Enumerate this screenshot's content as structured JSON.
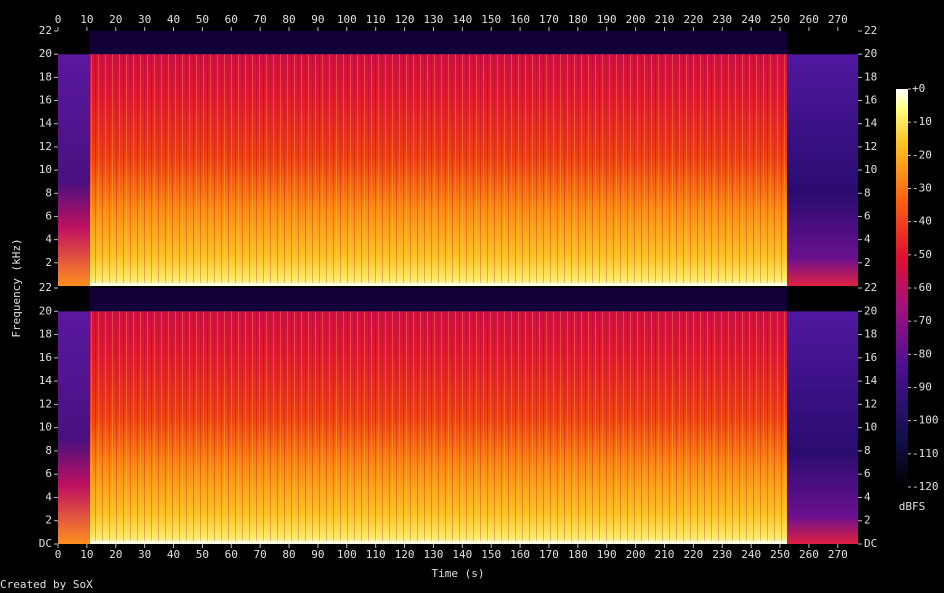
{
  "chart_data": {
    "type": "spectrogram",
    "x_label": "Time (s)",
    "y_label": "Frequency (kHz)",
    "credit": "Created by SoX",
    "xlim": [
      0,
      277
    ],
    "xticks": [
      0,
      10,
      20,
      30,
      40,
      50,
      60,
      70,
      80,
      90,
      100,
      110,
      120,
      130,
      140,
      150,
      160,
      170,
      180,
      190,
      200,
      210,
      220,
      230,
      240,
      250,
      260,
      270
    ],
    "channels": [
      {
        "ylim": [
          0,
          22
        ],
        "yticks": [
          2,
          4,
          6,
          8,
          10,
          12,
          14,
          16,
          18,
          20,
          22
        ]
      },
      {
        "ylim": [
          0,
          22
        ],
        "yticks": [
          {
            "value": 0,
            "label": "DC"
          },
          2,
          4,
          6,
          8,
          10,
          12,
          14,
          16,
          18,
          20,
          22
        ]
      }
    ],
    "colorbar": {
      "label": "dBFS",
      "zlim": [
        -120,
        0
      ],
      "ticks": [
        {
          "value": 0,
          "label": "+0"
        },
        -10,
        -20,
        -30,
        -40,
        -50,
        -60,
        -70,
        -80,
        -90,
        -100,
        -110,
        -120
      ]
    }
  }
}
